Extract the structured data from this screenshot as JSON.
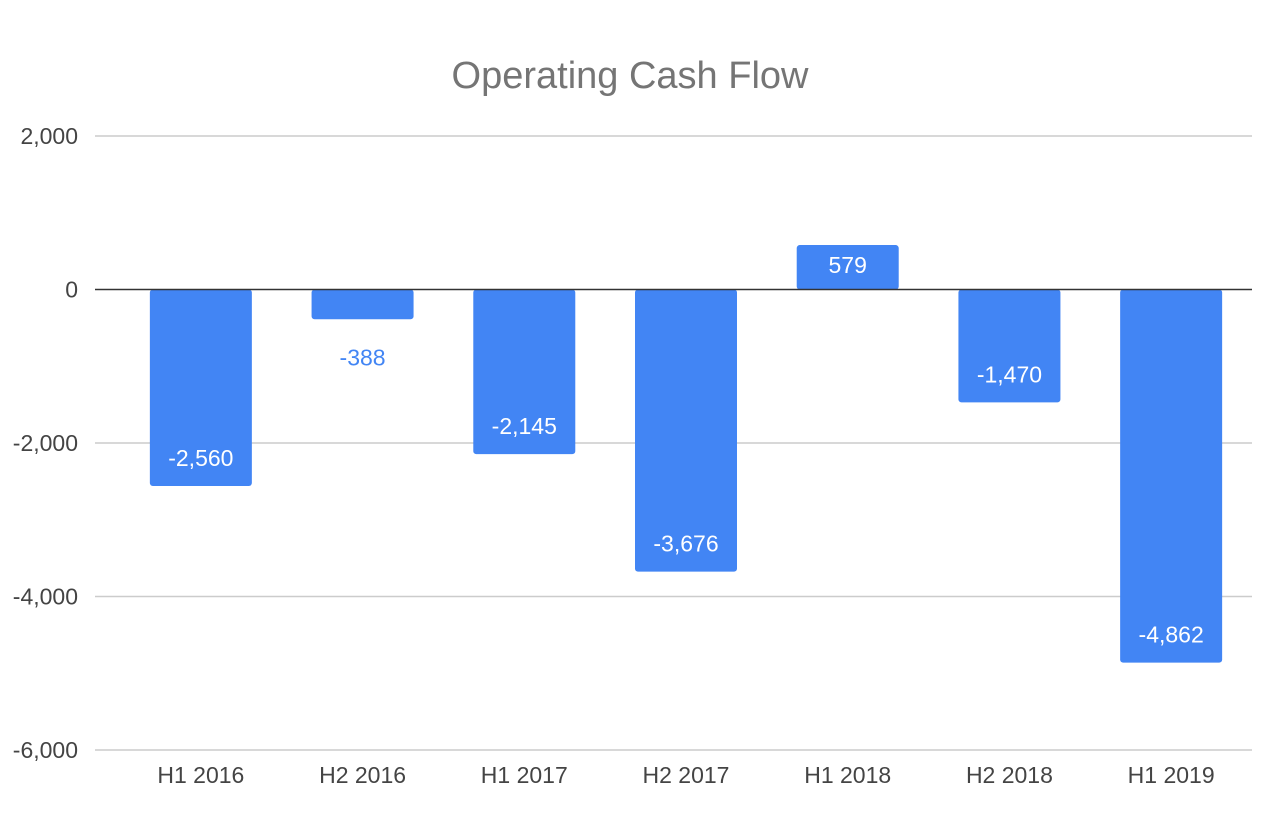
{
  "chart_data": {
    "type": "bar",
    "title": "Operating Cash Flow",
    "xlabel": "",
    "ylabel": "",
    "categories": [
      "H1 2016",
      "H2 2016",
      "H1 2017",
      "H2 2017",
      "H1 2018",
      "H2 2018",
      "H1 2019"
    ],
    "values": [
      -2560,
      -388,
      -2145,
      -3676,
      579,
      -1470,
      -4862
    ],
    "data_labels": [
      "-2,560",
      "-388",
      "-2,145",
      "-3,676",
      "579",
      "-1,470",
      "-4,862"
    ],
    "ylim": [
      -6000,
      2000
    ],
    "yticks": [
      2000,
      0,
      -2000,
      -4000,
      -6000
    ],
    "ytick_labels": [
      "2,000",
      "0",
      "-2,000",
      "-4,000",
      "-6,000"
    ],
    "grid": true,
    "legend": "none",
    "colors": {
      "bar": "#4285f4",
      "label_inside": "#ffffff",
      "label_outside": "#4285f4"
    }
  }
}
